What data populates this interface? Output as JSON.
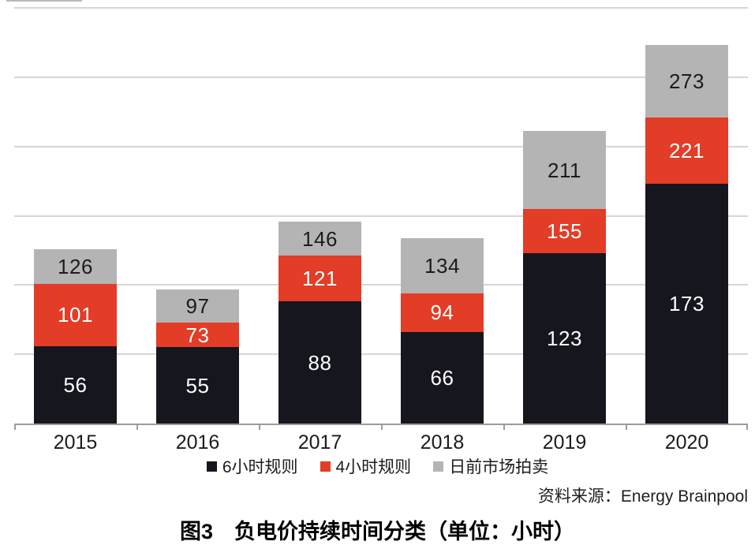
{
  "figure": {
    "source_label": "资料来源：Energy Brainpool",
    "caption": "图3　负电价持续时间分类（单位：小时）"
  },
  "colors": {
    "series_dark": "#16161f",
    "series_red": "#e33c27",
    "series_gray": "#b4b4b4",
    "gridline": "#d6d6d6",
    "axis": "#9b9b9b",
    "text": "#1c1c1c",
    "background": "#ffffff"
  },
  "chart_data": {
    "type": "bar",
    "stacked": true,
    "title": "图3　负电价持续时间分类（单位：小时）",
    "xlabel": "",
    "ylabel": "",
    "categories": [
      "2015",
      "2016",
      "2017",
      "2018",
      "2019",
      "2020"
    ],
    "series": [
      {
        "name": "6小时规则",
        "color": "#16161f",
        "label_color": "#ffffff",
        "cumulative_values": [
          56,
          55,
          88,
          66,
          123,
          173
        ],
        "segment_values": [
          56,
          55,
          88,
          66,
          123,
          173
        ]
      },
      {
        "name": "4小时规则",
        "color": "#e33c27",
        "label_color": "#ffffff",
        "cumulative_values": [
          101,
          73,
          121,
          94,
          155,
          221
        ],
        "segment_values": [
          45,
          18,
          33,
          28,
          32,
          48
        ]
      },
      {
        "name": "日前市场拍卖",
        "color": "#b4b4b4",
        "label_color": "#1c1c1c",
        "cumulative_values": [
          126,
          97,
          146,
          134,
          211,
          273
        ],
        "segment_values": [
          25,
          24,
          25,
          40,
          56,
          52
        ]
      }
    ],
    "bar_label_mode": "cumulative totals shown inside each segment",
    "ylim": [
      0,
      300
    ],
    "gridline_step": 50,
    "y_axis_labels_visible": false,
    "grid": true,
    "legend_position": "bottom",
    "source": "资料来源：Energy Brainpool"
  }
}
